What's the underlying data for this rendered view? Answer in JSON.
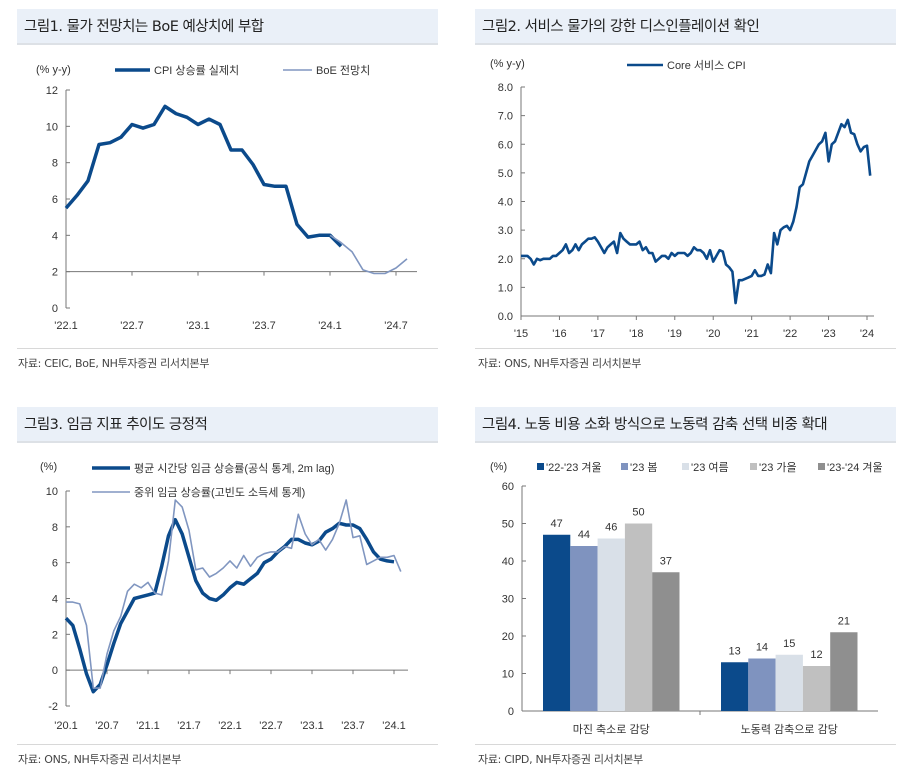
{
  "panels": [
    {
      "title": "그림1. 물가 전망치는 BoE 예상치에 부합",
      "source": "자료: CEIC, BoE, NH투자증권 리서치본부"
    },
    {
      "title": "그림2. 서비스 물가의 강한 디스인플레이션 확인",
      "source": "자료: ONS, NH투자증권 리서치본부"
    },
    {
      "title": "그림3. 임금 지표 추이도 긍정적",
      "source": "자료: ONS, NH투자증권 리서치본부"
    },
    {
      "title": "그림4. 노동 비용 소화 방식으로 노동력 감축 선택 비중 확대",
      "source": "자료: CIPD, NH투자증권 리서치본부"
    }
  ],
  "chart_data": [
    {
      "type": "line",
      "unit_label": "(% y-y)",
      "ylim": [
        0,
        12
      ],
      "yticks": [
        0,
        2,
        4,
        6,
        8,
        10,
        12
      ],
      "reference_line": 2,
      "xticks": [
        {
          "label": "'22.1",
          "date": "2022-01"
        },
        {
          "label": "'22.7",
          "date": "2022-07"
        },
        {
          "label": "'23.1",
          "date": "2023-01"
        },
        {
          "label": "'23.7",
          "date": "2023-07"
        },
        {
          "label": "'24.1",
          "date": "2024-01"
        },
        {
          "label": "'24.7",
          "date": "2024-07"
        }
      ],
      "legend_position": "top",
      "series": [
        {
          "name": "CPI 상승률 실제치",
          "color": "#0b4a8b",
          "width": 3.5,
          "x_start": "2022-01",
          "x_step": "month",
          "values": [
            5.5,
            6.2,
            7.0,
            9.0,
            9.1,
            9.4,
            10.1,
            9.9,
            10.1,
            11.1,
            10.7,
            10.5,
            10.1,
            10.4,
            10.1,
            8.7,
            8.7,
            7.9,
            6.8,
            6.7,
            6.7,
            4.6,
            3.9,
            4.0,
            4.0,
            3.4
          ]
        },
        {
          "name": "BoE 전망치",
          "color": "#8096c0",
          "width": 1.6,
          "x_start": "2024-01",
          "x_step": "month",
          "values": [
            4.0,
            3.6,
            3.1,
            2.1,
            1.9,
            1.9,
            2.2,
            2.7
          ]
        }
      ]
    },
    {
      "type": "line",
      "unit_label": "(% y-y)",
      "ylim": [
        0,
        8
      ],
      "yticks": [
        "0.0",
        "1.0",
        "2.0",
        "3.0",
        "4.0",
        "5.0",
        "6.0",
        "7.0",
        "8.0"
      ],
      "xticks": [
        {
          "label": "'15",
          "date": "2015-01"
        },
        {
          "label": "'16",
          "date": "2016-01"
        },
        {
          "label": "'17",
          "date": "2017-01"
        },
        {
          "label": "'18",
          "date": "2018-01"
        },
        {
          "label": "'19",
          "date": "2019-01"
        },
        {
          "label": "'20",
          "date": "2020-01"
        },
        {
          "label": "'21",
          "date": "2021-01"
        },
        {
          "label": "'22",
          "date": "2022-01"
        },
        {
          "label": "'23",
          "date": "2023-01"
        },
        {
          "label": "'24",
          "date": "2024-01"
        }
      ],
      "legend_position": "top",
      "series": [
        {
          "name": "Core 서비스 CPI",
          "color": "#0b4a8b",
          "width": 2.6,
          "x_start": "2015-01",
          "x_step": "month",
          "values": [
            2.1,
            2.1,
            2.1,
            2.0,
            1.8,
            2.0,
            1.95,
            2.0,
            2.0,
            2.0,
            2.1,
            2.1,
            2.2,
            2.3,
            2.5,
            2.2,
            2.3,
            2.5,
            2.3,
            2.5,
            2.6,
            2.7,
            2.7,
            2.75,
            2.6,
            2.4,
            2.2,
            2.4,
            2.5,
            2.6,
            2.2,
            2.9,
            2.7,
            2.6,
            2.5,
            2.5,
            2.5,
            2.6,
            2.3,
            2.4,
            2.2,
            2.2,
            1.9,
            2.0,
            2.1,
            2.1,
            2.0,
            2.2,
            2.1,
            2.2,
            2.2,
            2.2,
            2.1,
            2.2,
            2.4,
            2.3,
            2.3,
            2.2,
            2.0,
            2.3,
            1.9,
            2.1,
            2.3,
            2.25,
            1.8,
            1.7,
            1.55,
            0.45,
            1.25,
            1.25,
            1.3,
            1.35,
            1.4,
            1.6,
            1.4,
            1.4,
            1.45,
            1.8,
            1.5,
            2.9,
            2.5,
            3.0,
            3.1,
            3.15,
            3.0,
            3.3,
            3.8,
            4.5,
            4.6,
            5.0,
            5.4,
            5.6,
            5.8,
            6.0,
            6.1,
            6.4,
            5.4,
            6.0,
            6.1,
            6.4,
            6.7,
            6.6,
            6.85,
            6.4,
            6.35,
            6.0,
            5.75,
            5.9,
            5.95,
            4.9
          ]
        }
      ]
    },
    {
      "type": "line",
      "unit_label": "(%)",
      "ylim": [
        -2,
        10
      ],
      "yticks": [
        -2,
        0,
        2,
        4,
        6,
        8,
        10
      ],
      "xticks": [
        {
          "label": "'20.1",
          "date": "2020-01"
        },
        {
          "label": "'20.7",
          "date": "2020-07"
        },
        {
          "label": "'21.1",
          "date": "2021-01"
        },
        {
          "label": "'21.7",
          "date": "2021-07"
        },
        {
          "label": "'22.1",
          "date": "2022-01"
        },
        {
          "label": "'22.7",
          "date": "2022-07"
        },
        {
          "label": "'23.1",
          "date": "2023-01"
        },
        {
          "label": "'23.7",
          "date": "2023-07"
        },
        {
          "label": "'24.1",
          "date": "2024-01"
        }
      ],
      "legend_position": "top",
      "series": [
        {
          "name": "평균 시간당 임금 상승률(공식 통계, 2m lag)",
          "color": "#0b4a8b",
          "width": 3.5,
          "x_start": "2020-01",
          "x_step": "month",
          "values": [
            2.9,
            2.5,
            1.2,
            -0.2,
            -1.2,
            -0.8,
            0.3,
            1.5,
            2.6,
            3.3,
            4.0,
            4.1,
            4.2,
            4.3,
            5.8,
            7.5,
            8.4,
            7.6,
            6.3,
            5.0,
            4.3,
            4.0,
            3.9,
            4.2,
            4.6,
            4.9,
            4.8,
            5.1,
            5.4,
            6.0,
            6.2,
            6.6,
            6.9,
            7.3,
            7.3,
            7.1,
            7.0,
            7.2,
            7.7,
            7.9,
            8.2,
            8.1,
            8.1,
            7.9,
            7.3,
            6.6,
            6.2,
            6.1,
            6.05
          ]
        },
        {
          "name": "중위 임금 상승률(고빈도 소득세 통계)",
          "color": "#8096c0",
          "width": 1.6,
          "x_start": "2020-01",
          "x_step": "month",
          "values": [
            3.8,
            3.8,
            3.7,
            2.5,
            -1.0,
            -1.0,
            0.9,
            2.2,
            3.0,
            4.4,
            4.8,
            4.6,
            4.9,
            4.3,
            4.2,
            6.1,
            9.5,
            9.1,
            7.8,
            5.6,
            5.7,
            5.2,
            5.4,
            5.7,
            6.1,
            5.7,
            6.4,
            5.8,
            6.3,
            6.5,
            6.6,
            6.6,
            6.9,
            6.8,
            8.7,
            7.6,
            7.0,
            7.3,
            6.7,
            7.3,
            8.2,
            9.5,
            7.4,
            7.5,
            5.9,
            6.1,
            6.3,
            6.3,
            6.4,
            5.5
          ]
        }
      ]
    },
    {
      "type": "bar",
      "unit_label": "(%)",
      "ylim": [
        0,
        60
      ],
      "yticks": [
        0,
        10,
        20,
        30,
        40,
        50,
        60
      ],
      "categories": [
        "마진 축소로 감당",
        "노동력 감축으로 감당"
      ],
      "legend_position": "top",
      "series": [
        {
          "name": "'22-'23 겨울",
          "color": "#0b4a8b",
          "values": [
            47,
            13
          ]
        },
        {
          "name": "'23 봄",
          "color": "#7f93bf",
          "values": [
            44,
            14
          ]
        },
        {
          "name": "'23 여름",
          "color": "#d9e0e8",
          "values": [
            46,
            15
          ]
        },
        {
          "name": "'23 가을",
          "color": "#c0c0c0",
          "values": [
            50,
            12
          ]
        },
        {
          "name": "'23-'24 겨울",
          "color": "#8f8f8f",
          "values": [
            37,
            21
          ]
        }
      ]
    }
  ]
}
